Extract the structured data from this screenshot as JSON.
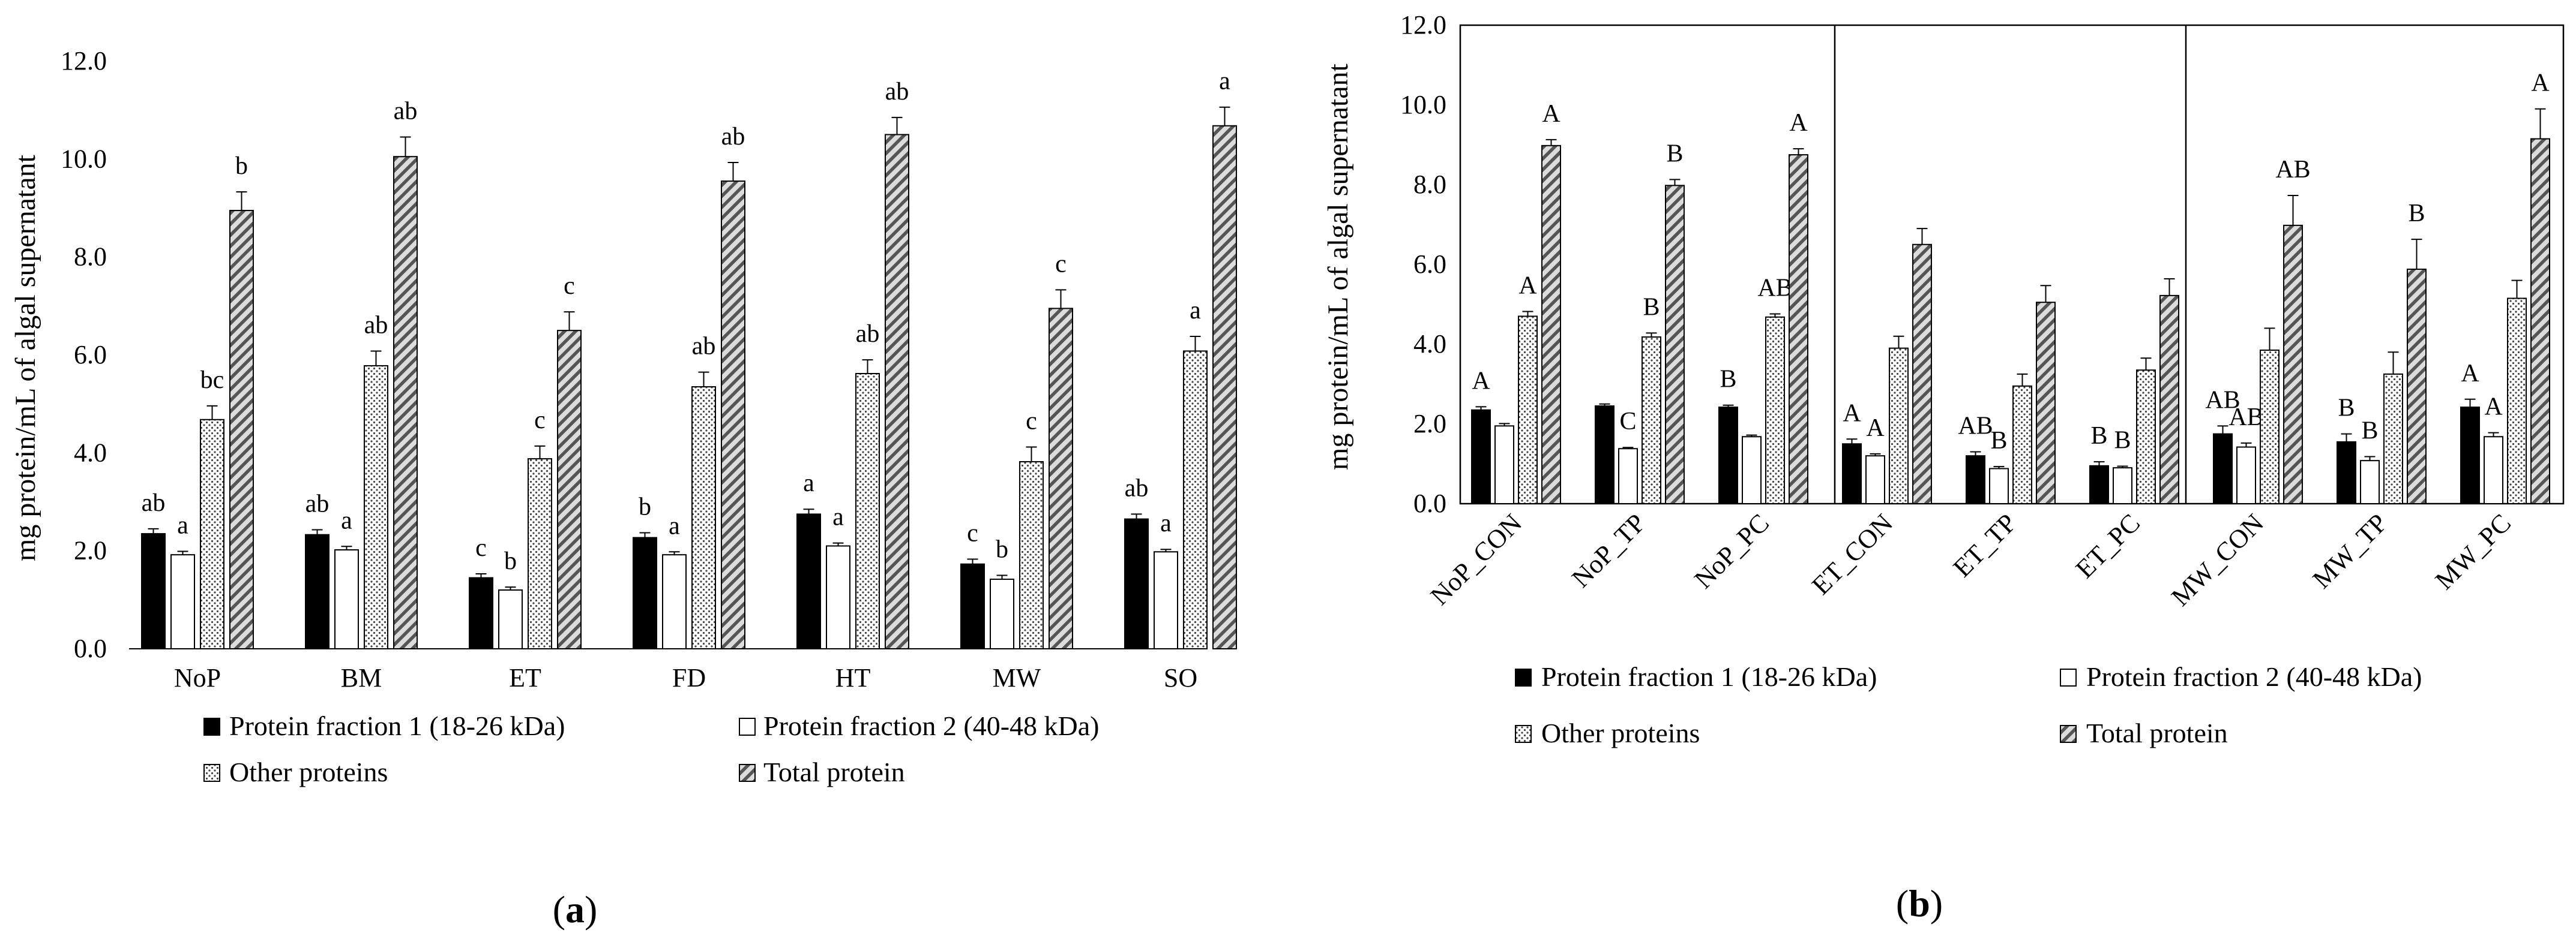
{
  "chart_data": [
    {
      "type": "bar",
      "panel_label": [
        "(",
        "a",
        ")"
      ],
      "ylabel": "mg protein/mL of algal supernatant",
      "ylim": [
        0,
        12
      ],
      "ytick_labels": [
        "0.0",
        "2.0",
        "4.0",
        "6.0",
        "8.0",
        "10.0",
        "12.0"
      ],
      "categories": [
        "NoP",
        "BM",
        "ET",
        "FD",
        "HT",
        "MW",
        "SO"
      ],
      "series": [
        {
          "name": "Protein fraction 1 (18-26 kDa)",
          "pattern": "solid",
          "values": [
            2.35,
            2.33,
            1.45,
            2.27,
            2.75,
            1.73,
            2.65
          ],
          "errors": [
            0.1,
            0.1,
            0.08,
            0.1,
            0.1,
            0.1,
            0.1
          ],
          "labels": [
            "ab",
            "ab",
            "c",
            "b",
            "a",
            "c",
            "ab"
          ]
        },
        {
          "name": "Protein fraction 2 (40-48 kDa)",
          "pattern": "open",
          "values": [
            1.92,
            2.02,
            1.2,
            1.92,
            2.1,
            1.42,
            1.98
          ],
          "errors": [
            0.07,
            0.07,
            0.06,
            0.06,
            0.06,
            0.08,
            0.05
          ],
          "labels": [
            "a",
            "a",
            "b",
            "a",
            "a",
            "b",
            "a"
          ]
        },
        {
          "name": "Other proteins",
          "pattern": "dots",
          "values": [
            4.68,
            5.78,
            3.88,
            5.35,
            5.62,
            3.82,
            6.08
          ],
          "errors": [
            0.28,
            0.3,
            0.26,
            0.3,
            0.28,
            0.3,
            0.3
          ],
          "labels": [
            "bc",
            "ab",
            "c",
            "ab",
            "ab",
            "c",
            "a"
          ]
        },
        {
          "name": "Total protein",
          "pattern": "hatch",
          "values": [
            8.95,
            10.05,
            6.5,
            9.55,
            10.5,
            6.95,
            10.68
          ],
          "errors": [
            0.38,
            0.4,
            0.38,
            0.38,
            0.35,
            0.38,
            0.38
          ],
          "labels": [
            "b",
            "ab",
            "c",
            "ab",
            "ab",
            "c",
            "a"
          ]
        }
      ]
    },
    {
      "type": "bar",
      "panel_label": [
        "(",
        "b",
        ")"
      ],
      "ylabel": "mg protein/mL of algal supernatant",
      "ylim": [
        0,
        12
      ],
      "ytick_labels": [
        "0.0",
        "2.0",
        "4.0",
        "6.0",
        "8.0",
        "10.0",
        "12.0"
      ],
      "categories": [
        "NoP_CON",
        "NoP_TP",
        "NoP_PC",
        "ET_CON",
        "ET_TP",
        "ET_PC",
        "MW_CON",
        "MW_TP",
        "MW_PC"
      ],
      "series": [
        {
          "name": "Protein fraction 1 (18-26 kDa)",
          "pattern": "solid",
          "values": [
            2.35,
            2.45,
            2.42,
            1.5,
            1.2,
            0.95,
            1.75,
            1.55,
            2.42
          ],
          "errors": [
            0.08,
            0.05,
            0.05,
            0.12,
            0.1,
            0.1,
            0.2,
            0.2,
            0.2
          ],
          "labels": [
            "A",
            "",
            "B",
            "A",
            "AB",
            "B",
            "AB",
            "B",
            "A"
          ]
        },
        {
          "name": "Protein fraction 2 (40-48 kDa)",
          "pattern": "open",
          "values": [
            1.95,
            1.38,
            1.68,
            1.2,
            0.88,
            0.9,
            1.42,
            1.08,
            1.68
          ],
          "errors": [
            0.06,
            0.03,
            0.04,
            0.05,
            0.05,
            0.04,
            0.1,
            0.1,
            0.1
          ],
          "labels": [
            "",
            "C",
            "",
            "A",
            "B",
            "B",
            "AB",
            "B",
            "A"
          ]
        },
        {
          "name": "Other proteins",
          "pattern": "dots",
          "values": [
            4.7,
            4.18,
            4.68,
            3.9,
            2.95,
            3.35,
            3.85,
            3.25,
            5.15
          ],
          "errors": [
            0.12,
            0.1,
            0.08,
            0.3,
            0.3,
            0.3,
            0.55,
            0.55,
            0.45
          ],
          "labels": [
            "A",
            "B",
            "AB",
            "",
            "",
            "",
            "",
            "",
            ""
          ]
        },
        {
          "name": "Total protein",
          "pattern": "hatch",
          "values": [
            8.98,
            7.98,
            8.75,
            6.5,
            5.05,
            5.22,
            6.98,
            5.88,
            9.15
          ],
          "errors": [
            0.15,
            0.15,
            0.15,
            0.4,
            0.42,
            0.42,
            0.75,
            0.75,
            0.75
          ],
          "labels": [
            "A",
            "B",
            "A",
            "",
            "",
            "",
            "AB",
            "B",
            "A"
          ]
        }
      ]
    }
  ]
}
